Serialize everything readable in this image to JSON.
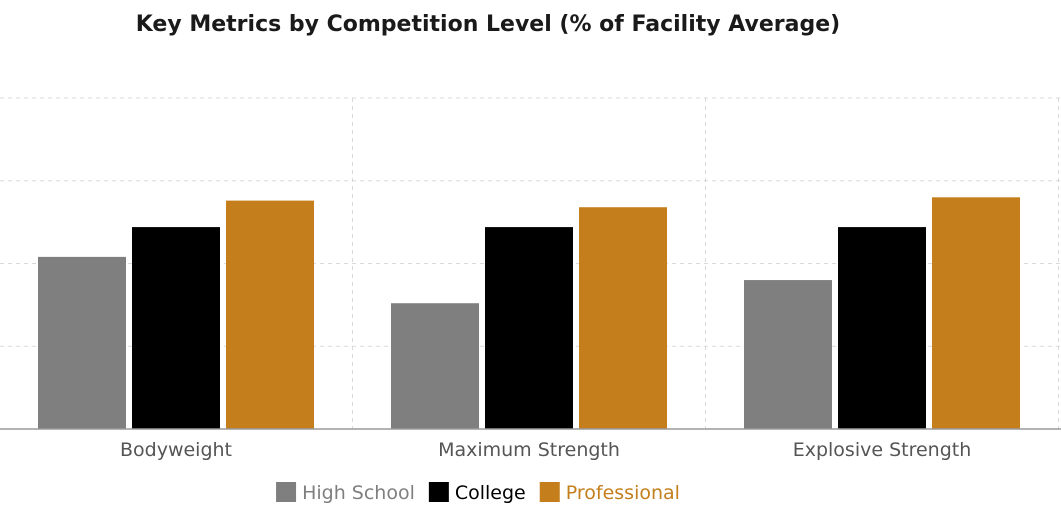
{
  "chart_data": {
    "type": "bar",
    "title": "Key Metrics by Competition Level (% of Facility Average)",
    "xlabel": "",
    "ylabel": "",
    "categories": [
      "Bodyweight",
      "Maximum Strength",
      "Explosive Strength"
    ],
    "series": [
      {
        "name": "High School",
        "color": "#7f7f7f",
        "values": [
          82,
          68,
          75
        ]
      },
      {
        "name": "College",
        "color": "#000000",
        "values": [
          91,
          91,
          91
        ]
      },
      {
        "name": "Professional",
        "color": "#c47f1c",
        "values": [
          99,
          97,
          100
        ]
      }
    ],
    "ylim": [
      30,
      130
    ],
    "y_gridlines": [
      55,
      80,
      105,
      130
    ],
    "grid": true,
    "legend_position": "bottom"
  }
}
